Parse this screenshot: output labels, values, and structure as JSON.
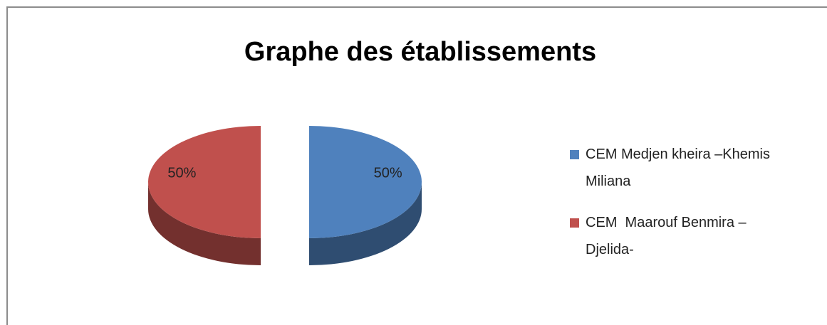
{
  "chart_data": {
    "type": "pie",
    "title": "Graphe des établissements",
    "categories": [
      "CEM Medjen kheira –Khemis Miliana",
      "CEM  Maarouf Benmira – Djelida-"
    ],
    "values": [
      50,
      50
    ],
    "value_labels": [
      "50%",
      "50%"
    ],
    "colors": [
      "#4f81bd",
      "#c0504d"
    ]
  }
}
